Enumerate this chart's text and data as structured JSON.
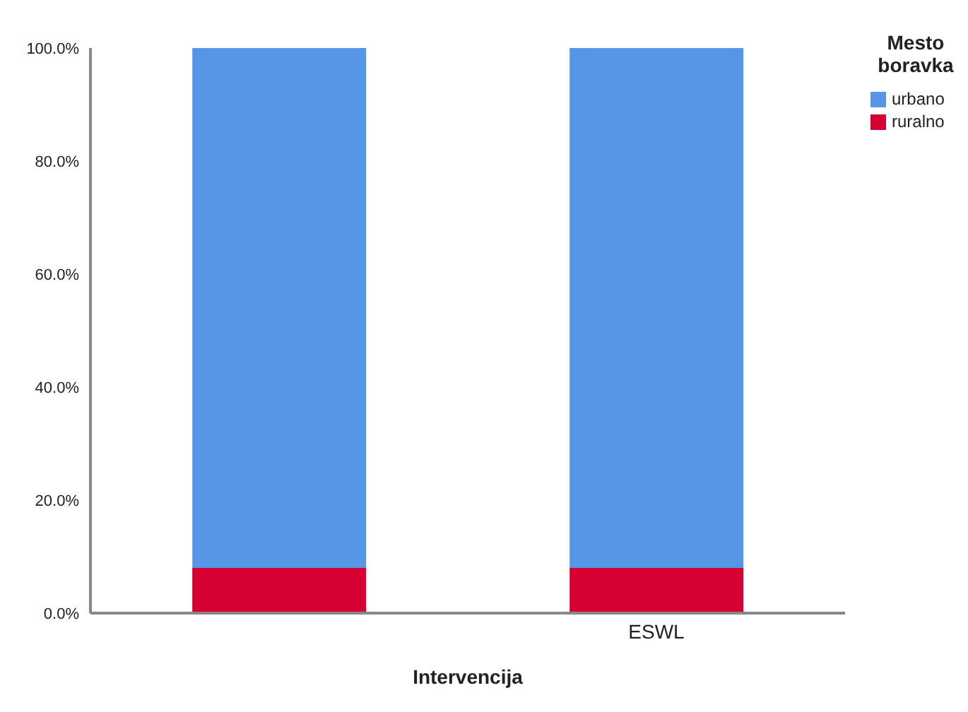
{
  "chart_data": {
    "type": "bar",
    "stacked": true,
    "xlabel": "Intervencija",
    "legend_title": "Mesto boravka",
    "legend": "top right",
    "grid": false,
    "categories": [
      null,
      "ESWL"
    ],
    "series": [
      {
        "name": "ruralno",
        "color": "#d70033",
        "values": [
          8.0,
          8.0
        ]
      },
      {
        "name": "urbano",
        "color": "#5596e6",
        "values": [
          92.0,
          92.0
        ]
      }
    ],
    "ylim": [
      0,
      100
    ],
    "yticks": [
      {
        "value": 0,
        "label": "0.0%"
      },
      {
        "value": 20,
        "label": "20.0%"
      },
      {
        "value": 40,
        "label": "40.0%"
      },
      {
        "value": 60,
        "label": "60.0%"
      },
      {
        "value": 80,
        "label": "80.0%"
      },
      {
        "value": 100,
        "label": "100.0%"
      }
    ]
  }
}
